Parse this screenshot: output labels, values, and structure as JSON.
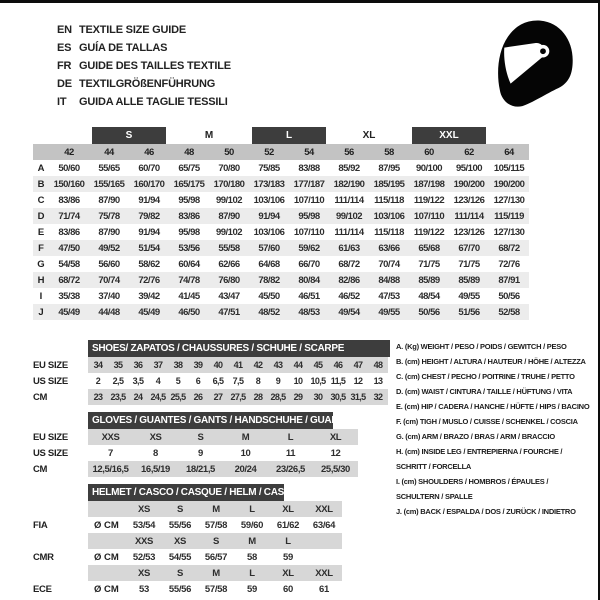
{
  "header": {
    "languages": [
      {
        "code": "EN",
        "text": "TEXTILE SIZE GUIDE"
      },
      {
        "code": "ES",
        "text": "GUÍA DE TALLAS"
      },
      {
        "code": "FR",
        "text": "GUIDE DES TAILLES TEXTILE"
      },
      {
        "code": "DE",
        "text": "TEXTILGRÖßENFÜHRUNG"
      },
      {
        "code": "IT",
        "text": "GUIDA ALLE TAGLIE TESSILI"
      }
    ],
    "logo_icon": "racing-helmet-icon"
  },
  "colors": {
    "header_bar": "#3d3d3d",
    "number_band": "#c3c3c3",
    "row_stripe": "#ececec",
    "section_band": "#d7d7d7"
  },
  "main_table": {
    "size_groups": [
      {
        "label": "S",
        "dark": true
      },
      {
        "label": "M",
        "dark": false
      },
      {
        "label": "L",
        "dark": true
      },
      {
        "label": "XL",
        "dark": false
      },
      {
        "label": "XXL",
        "dark": true
      }
    ],
    "columns": [
      "42",
      "44",
      "46",
      "48",
      "50",
      "52",
      "54",
      "56",
      "58",
      "60",
      "62",
      "64"
    ],
    "rows": [
      {
        "label": "A",
        "values": [
          "50/60",
          "55/65",
          "60/70",
          "65/75",
          "70/80",
          "75/85",
          "83/88",
          "85/92",
          "87/95",
          "90/100",
          "95/100",
          "105/115"
        ]
      },
      {
        "label": "B",
        "values": [
          "150/160",
          "155/165",
          "160/170",
          "165/175",
          "170/180",
          "173/183",
          "177/187",
          "182/190",
          "185/195",
          "187/198",
          "190/200",
          "190/200"
        ]
      },
      {
        "label": "C",
        "values": [
          "83/86",
          "87/90",
          "91/94",
          "95/98",
          "99/102",
          "103/106",
          "107/110",
          "111/114",
          "115/118",
          "119/122",
          "123/126",
          "127/130"
        ]
      },
      {
        "label": "D",
        "values": [
          "71/74",
          "75/78",
          "79/82",
          "83/86",
          "87/90",
          "91/94",
          "95/98",
          "99/102",
          "103/106",
          "107/110",
          "111/114",
          "115/119"
        ]
      },
      {
        "label": "E",
        "values": [
          "83/86",
          "87/90",
          "91/94",
          "95/98",
          "99/102",
          "103/106",
          "107/110",
          "111/114",
          "115/118",
          "119/122",
          "123/126",
          "127/130"
        ]
      },
      {
        "label": "F",
        "values": [
          "47/50",
          "49/52",
          "51/54",
          "53/56",
          "55/58",
          "57/60",
          "59/62",
          "61/63",
          "63/66",
          "65/68",
          "67/70",
          "68/72"
        ]
      },
      {
        "label": "G",
        "values": [
          "54/58",
          "56/60",
          "58/62",
          "60/64",
          "62/66",
          "64/68",
          "66/70",
          "68/72",
          "70/74",
          "71/75",
          "71/75",
          "72/76"
        ]
      },
      {
        "label": "H",
        "values": [
          "68/72",
          "70/74",
          "72/76",
          "74/78",
          "76/80",
          "78/82",
          "80/84",
          "82/86",
          "84/88",
          "85/89",
          "85/89",
          "87/91"
        ]
      },
      {
        "label": "I",
        "values": [
          "35/38",
          "37/40",
          "39/42",
          "41/45",
          "43/47",
          "45/50",
          "46/51",
          "46/52",
          "47/53",
          "48/54",
          "49/55",
          "50/56"
        ]
      },
      {
        "label": "J",
        "values": [
          "45/49",
          "44/48",
          "45/49",
          "46/50",
          "47/51",
          "48/52",
          "48/53",
          "49/54",
          "49/55",
          "50/56",
          "51/56",
          "52/58"
        ]
      }
    ]
  },
  "shoes": {
    "title": "SHOES/ ZAPATOS / CHAUSSURES / SCHUHE / SCARPE",
    "rows": [
      {
        "label": "EU SIZE",
        "values": [
          "34",
          "35",
          "36",
          "37",
          "38",
          "39",
          "40",
          "41",
          "42",
          "43",
          "44",
          "45",
          "46",
          "47",
          "48"
        ]
      },
      {
        "label": "US SIZE",
        "values": [
          "2",
          "2,5",
          "3,5",
          "4",
          "5",
          "6",
          "6,5",
          "7,5",
          "8",
          "9",
          "10",
          "10,5",
          "11,5",
          "12",
          "13"
        ]
      },
      {
        "label": "CM",
        "values": [
          "23",
          "23,5",
          "24",
          "24,5",
          "25,5",
          "26",
          "27",
          "27,5",
          "28",
          "28,5",
          "29",
          "30",
          "30,5",
          "31,5",
          "32"
        ]
      }
    ]
  },
  "gloves": {
    "title": "GLOVES / GUANTES / GANTS / HANDSCHUHE / GUANTI",
    "rows": [
      {
        "label": "EU SIZE",
        "values": [
          "XXS",
          "XS",
          "S",
          "M",
          "L",
          "XL"
        ]
      },
      {
        "label": "US SIZE",
        "values": [
          "7",
          "8",
          "9",
          "10",
          "11",
          "12"
        ]
      },
      {
        "label": "CM",
        "values": [
          "12,5/16,5",
          "16,5/19",
          "18/21,5",
          "20/24",
          "23/26,5",
          "25,5/30"
        ]
      }
    ]
  },
  "helmet_table": {
    "title": "HELMET / CASCO / CASQUE / HELM / CASCO",
    "sections": [
      {
        "label": "FIA",
        "unit": "Ø CM",
        "sizes": [
          "XS",
          "S",
          "M",
          "L",
          "XL",
          "XXL"
        ],
        "values": [
          "53/54",
          "55/56",
          "57/58",
          "59/60",
          "61/62",
          "63/64"
        ]
      },
      {
        "label": "CMR",
        "unit": "Ø CM",
        "sizes": [
          "XXS",
          "XS",
          "S",
          "M",
          "L"
        ],
        "values": [
          "52/53",
          "54/55",
          "56/57",
          "58",
          "59"
        ]
      },
      {
        "label": "ECE",
        "unit": "Ø CM",
        "sizes": [
          "XS",
          "S",
          "M",
          "L",
          "XL",
          "XXL"
        ],
        "values": [
          "53",
          "55/56",
          "57/58",
          "59",
          "60",
          "61"
        ]
      }
    ]
  },
  "legend": [
    {
      "lines": [
        "A. (Kg) WEIGHT / PESO / POIDS / GEWITCH / PESO"
      ]
    },
    {
      "lines": [
        "B. (cm) HEIGHT / ALTURA / HAUTEUR / HÖHE / ALTEZZA"
      ]
    },
    {
      "lines": [
        "C. (cm) CHEST / PECHO / POITRINE / TRUHE / PETTO"
      ]
    },
    {
      "lines": [
        "D. (cm) WAIST / CINTURA / TAILLE / HÜFTUNG / VITA"
      ]
    },
    {
      "lines": [
        "E. (cm) HIP / CADERA / HANCHE / HÜFTE / HIPS / BACINO"
      ]
    },
    {
      "lines": [
        "F. (cm) TIGH / MUSLO / CUISSE / SCHENKEL / COSCIA"
      ]
    },
    {
      "lines": [
        "G. (cm) ARM / BRAZO / BRAS / ARM / BRACCIO"
      ]
    },
    {
      "lines": [
        "H. (cm) INSIDE LEG / ENTREPIERNA / FOURCHE /",
        "SCHRITT / FORCELLA"
      ]
    },
    {
      "lines": [
        "I. (cm) SHOULDERS / HOMBROS / ÉPAULES /",
        "SCHULTERN / SPALLE"
      ]
    },
    {
      "lines": [
        "J. (cm) BACK / ESPALDA / DOS / ZURÜCK / INDIETRO"
      ]
    }
  ]
}
